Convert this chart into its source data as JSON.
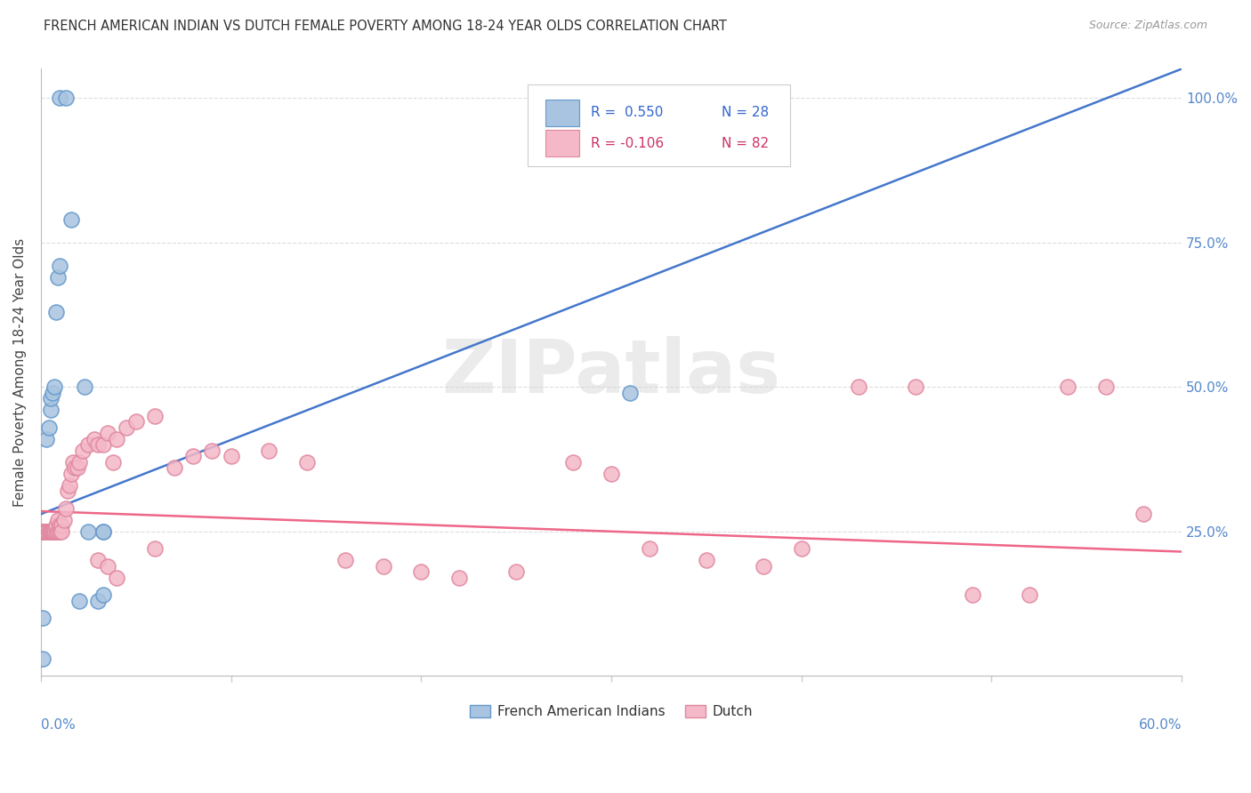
{
  "title": "FRENCH AMERICAN INDIAN VS DUTCH FEMALE POVERTY AMONG 18-24 YEAR OLDS CORRELATION CHART",
  "source": "Source: ZipAtlas.com",
  "ylabel": "Female Poverty Among 18-24 Year Olds",
  "legend_blue_r": "R =  0.550",
  "legend_blue_n": "N = 28",
  "legend_pink_r": "R = -0.106",
  "legend_pink_n": "N = 82",
  "blue_color": "#A8C4E0",
  "blue_edge_color": "#6699CC",
  "pink_color": "#F4B8C8",
  "pink_edge_color": "#E088A0",
  "blue_line_color": "#4477CC",
  "pink_line_color": "#EE6688",
  "watermark": "ZIPatlas",
  "xlim": [
    0.0,
    0.6
  ],
  "ylim": [
    0.0,
    1.05
  ],
  "blue_x": [
    0.001,
    0.001,
    0.002,
    0.002,
    0.003,
    0.003,
    0.003,
    0.003,
    0.003,
    0.004,
    0.005,
    0.005,
    0.006,
    0.007,
    0.008,
    0.009,
    0.01,
    0.01,
    0.013,
    0.016,
    0.02,
    0.023,
    0.025,
    0.03,
    0.033,
    0.033,
    0.033,
    0.31
  ],
  "blue_y": [
    0.03,
    0.1,
    0.25,
    0.25,
    0.25,
    0.25,
    0.25,
    0.25,
    0.41,
    0.43,
    0.46,
    0.48,
    0.49,
    0.5,
    0.63,
    0.69,
    0.71,
    1.0,
    1.0,
    0.79,
    0.13,
    0.5,
    0.25,
    0.13,
    0.25,
    0.25,
    0.14,
    0.49
  ],
  "pink_x": [
    0.001,
    0.001,
    0.002,
    0.002,
    0.002,
    0.002,
    0.003,
    0.003,
    0.003,
    0.003,
    0.003,
    0.003,
    0.004,
    0.004,
    0.004,
    0.004,
    0.004,
    0.005,
    0.005,
    0.005,
    0.006,
    0.006,
    0.006,
    0.007,
    0.007,
    0.007,
    0.008,
    0.008,
    0.009,
    0.009,
    0.01,
    0.01,
    0.011,
    0.011,
    0.012,
    0.013,
    0.014,
    0.015,
    0.016,
    0.017,
    0.018,
    0.019,
    0.02,
    0.022,
    0.025,
    0.028,
    0.03,
    0.033,
    0.035,
    0.038,
    0.04,
    0.045,
    0.05,
    0.06,
    0.07,
    0.08,
    0.09,
    0.1,
    0.12,
    0.14,
    0.16,
    0.18,
    0.2,
    0.22,
    0.25,
    0.28,
    0.3,
    0.32,
    0.35,
    0.38,
    0.4,
    0.43,
    0.46,
    0.49,
    0.52,
    0.54,
    0.56,
    0.58,
    0.03,
    0.035,
    0.04,
    0.06
  ],
  "pink_y": [
    0.25,
    0.25,
    0.25,
    0.25,
    0.25,
    0.25,
    0.25,
    0.25,
    0.25,
    0.25,
    0.25,
    0.25,
    0.25,
    0.25,
    0.25,
    0.25,
    0.25,
    0.25,
    0.25,
    0.25,
    0.25,
    0.25,
    0.25,
    0.25,
    0.25,
    0.25,
    0.25,
    0.26,
    0.25,
    0.27,
    0.25,
    0.26,
    0.26,
    0.25,
    0.27,
    0.29,
    0.32,
    0.33,
    0.35,
    0.37,
    0.36,
    0.36,
    0.37,
    0.39,
    0.4,
    0.41,
    0.4,
    0.4,
    0.42,
    0.37,
    0.41,
    0.43,
    0.44,
    0.45,
    0.36,
    0.38,
    0.39,
    0.38,
    0.39,
    0.37,
    0.2,
    0.19,
    0.18,
    0.17,
    0.18,
    0.37,
    0.35,
    0.22,
    0.2,
    0.19,
    0.22,
    0.5,
    0.5,
    0.14,
    0.14,
    0.5,
    0.5,
    0.28,
    0.2,
    0.19,
    0.17,
    0.22
  ],
  "blue_line_x0": 0.0,
  "blue_line_x1": 0.6,
  "blue_line_y0": 0.28,
  "blue_line_y1": 1.05,
  "pink_line_x0": 0.0,
  "pink_line_x1": 0.6,
  "pink_line_y0": 0.285,
  "pink_line_y1": 0.215
}
